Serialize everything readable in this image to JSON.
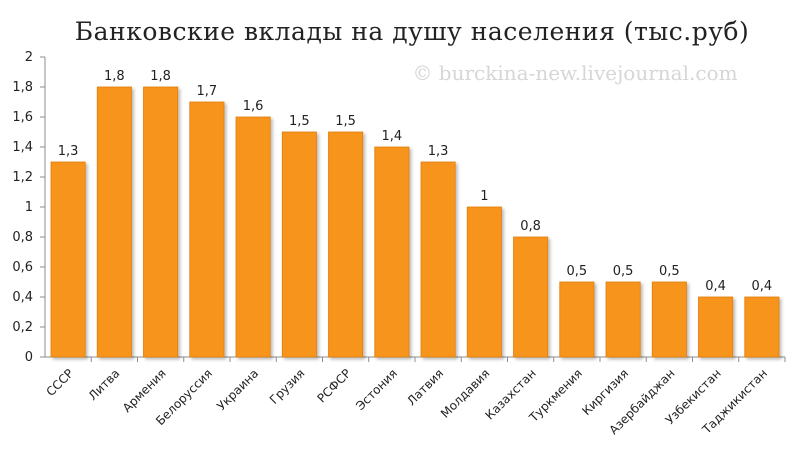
{
  "chart_data": {
    "type": "bar",
    "title": "Банковские вклады на душу населения (тыс.руб)",
    "watermark": "© burckina-new.livejournal.com",
    "categories": [
      "СССР",
      "Литва",
      "Армения",
      "Белоруссия",
      "Украина",
      "Грузия",
      "РСФСР",
      "Эстония",
      "Латвия",
      "Молдавия",
      "Казахстан",
      "Туркмения",
      "Киргизия",
      "Азербайджан",
      "Узбекистан",
      "Таджикистан"
    ],
    "values": [
      1.3,
      1.8,
      1.8,
      1.7,
      1.6,
      1.5,
      1.5,
      1.4,
      1.3,
      1,
      0.8,
      0.5,
      0.5,
      0.5,
      0.4,
      0.4
    ],
    "value_labels": [
      "1,3",
      "1,8",
      "1,8",
      "1,7",
      "1,6",
      "1,5",
      "1,5",
      "1,4",
      "1,3",
      "1",
      "0,8",
      "0,5",
      "0,5",
      "0,5",
      "0,4",
      "0,4"
    ],
    "ylim": [
      0,
      2
    ],
    "yticks": [
      "0",
      "0,2",
      "0,4",
      "0,6",
      "0,8",
      "1",
      "1,2",
      "1,4",
      "1,6",
      "1,8",
      "2"
    ],
    "xlabel": "",
    "ylabel": "",
    "grid": false,
    "legend": "none",
    "colors": {
      "bar": "#f7941d",
      "bar_edge": "#e07d10",
      "axis": "#8c8c8c",
      "text": "#222222"
    }
  }
}
